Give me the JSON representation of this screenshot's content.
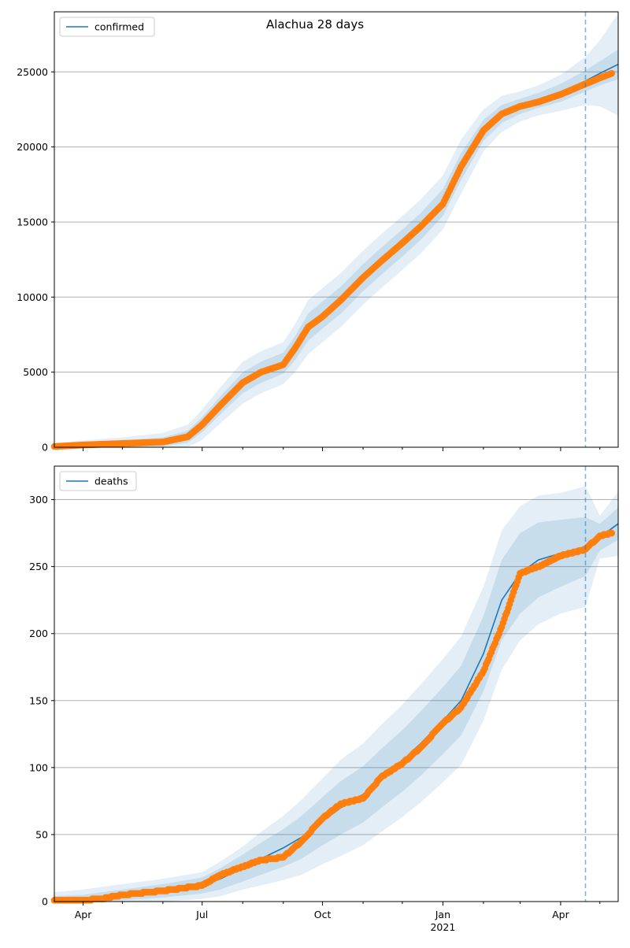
{
  "figure": {
    "title": "Alachua 28 days"
  },
  "colors": {
    "line": "#1f77b4",
    "points": "#ff7f0e",
    "band": "#1f77b4",
    "grid": "#b0b0b0",
    "forecast_line": "#1f77b4"
  },
  "chart_data": [
    {
      "type": "line",
      "name": "confirmed-panel",
      "title": "Alachua 28 days",
      "xlabel": "",
      "ylabel": "",
      "x_range": [
        "2020-03-10",
        "2021-05-15"
      ],
      "ylim": [
        0,
        29000
      ],
      "yticks": [
        0,
        5000,
        10000,
        15000,
        20000,
        25000
      ],
      "ytick_labels": [
        "0",
        "5000",
        "10000",
        "15000",
        "20000",
        "25000"
      ],
      "grid": "y",
      "legend": {
        "position": "top-left",
        "label": "confirmed"
      },
      "forecast_start": "2021-04-20",
      "series": [
        {
          "name": "confirmed",
          "kind": "model",
          "x": [
            "2020-03-10",
            "2020-04-01",
            "2020-05-01",
            "2020-06-01",
            "2020-06-20",
            "2020-07-01",
            "2020-07-15",
            "2020-08-01",
            "2020-08-15",
            "2020-09-01",
            "2020-09-10",
            "2020-09-20",
            "2020-10-01",
            "2020-10-15",
            "2020-11-01",
            "2020-11-15",
            "2020-12-01",
            "2020-12-15",
            "2021-01-01",
            "2021-01-15",
            "2021-02-01",
            "2021-02-15",
            "2021-03-01",
            "2021-03-15",
            "2021-04-01",
            "2021-04-20",
            "2021-05-01",
            "2021-05-15"
          ],
          "y": [
            50,
            150,
            250,
            350,
            700,
            1500,
            2800,
            4300,
            5000,
            5600,
            6600,
            8000,
            8800,
            9800,
            11300,
            12400,
            13600,
            14700,
            16300,
            18700,
            21100,
            22200,
            22700,
            23100,
            23600,
            24400,
            24900,
            25500
          ],
          "band_inner": [
            100,
            150,
            200,
            300,
            400,
            500,
            600,
            700,
            700,
            700,
            800,
            900,
            900,
            900,
            900,
            900,
            900,
            900,
            900,
            900,
            700,
            600,
            500,
            500,
            600,
            700,
            800,
            1000
          ],
          "band_outer": [
            200,
            300,
            400,
            600,
            800,
            1000,
            1200,
            1400,
            1400,
            1400,
            1600,
            1800,
            1800,
            1800,
            1800,
            1800,
            1800,
            1800,
            1800,
            1800,
            1400,
            1200,
            1000,
            1000,
            1200,
            1600,
            2200,
            3400
          ]
        },
        {
          "name": "confirmed observed",
          "kind": "observed",
          "x": [
            "2020-03-10",
            "2020-04-01",
            "2020-05-01",
            "2020-06-01",
            "2020-06-20",
            "2020-07-01",
            "2020-07-15",
            "2020-08-01",
            "2020-08-15",
            "2020-09-01",
            "2020-09-10",
            "2020-09-20",
            "2020-10-01",
            "2020-10-15",
            "2020-11-01",
            "2020-11-15",
            "2020-12-01",
            "2020-12-15",
            "2021-01-01",
            "2021-01-15",
            "2021-02-01",
            "2021-02-15",
            "2021-03-01",
            "2021-03-15",
            "2021-04-01",
            "2021-04-20",
            "2021-05-01",
            "2021-05-10"
          ],
          "y": [
            50,
            150,
            250,
            350,
            700,
            1500,
            2800,
            4300,
            5000,
            5500,
            6600,
            8000,
            8700,
            9800,
            11300,
            12400,
            13600,
            14700,
            16200,
            18700,
            21100,
            22200,
            22700,
            23000,
            23500,
            24200,
            24600,
            24900
          ]
        }
      ]
    },
    {
      "type": "line",
      "name": "deaths-panel",
      "xlabel": "",
      "ylabel": "",
      "x_range": [
        "2020-03-10",
        "2021-05-15"
      ],
      "ylim": [
        0,
        325
      ],
      "yticks": [
        0,
        50,
        100,
        150,
        200,
        250,
        300
      ],
      "ytick_labels": [
        "0",
        "50",
        "100",
        "150",
        "200",
        "250",
        "300"
      ],
      "xticks": [
        "2020-04-01",
        "2020-07-01",
        "2020-10-01",
        "2021-01-01",
        "2021-04-01"
      ],
      "xtick_labels": [
        "Apr",
        "Jul",
        "Oct",
        "Jan",
        "Apr"
      ],
      "xtick_year_label": "2021",
      "grid": "y",
      "legend": {
        "position": "top-left",
        "label": "deaths"
      },
      "forecast_start": "2021-04-20",
      "series": [
        {
          "name": "deaths",
          "kind": "model",
          "x": [
            "2020-03-10",
            "2020-04-01",
            "2020-05-01",
            "2020-06-01",
            "2020-07-01",
            "2020-07-15",
            "2020-08-01",
            "2020-08-15",
            "2020-09-01",
            "2020-09-15",
            "2020-10-01",
            "2020-10-15",
            "2020-11-01",
            "2020-11-15",
            "2020-12-01",
            "2020-12-15",
            "2021-01-01",
            "2021-01-15",
            "2021-02-01",
            "2021-02-15",
            "2021-03-01",
            "2021-03-15",
            "2021-04-01",
            "2021-04-20",
            "2021-05-01",
            "2021-05-15"
          ],
          "y": [
            1,
            2,
            5,
            8,
            12,
            17,
            25,
            32,
            40,
            48,
            60,
            70,
            80,
            92,
            105,
            118,
            135,
            150,
            185,
            225,
            245,
            255,
            260,
            265,
            272,
            282
          ],
          "band_inner": [
            3,
            3,
            4,
            5,
            6,
            8,
            10,
            12,
            14,
            16,
            18,
            20,
            21,
            22,
            23,
            24,
            25,
            26,
            28,
            30,
            30,
            28,
            25,
            22,
            10,
            12
          ],
          "band_outer": [
            6,
            7,
            8,
            9,
            10,
            13,
            16,
            20,
            24,
            28,
            32,
            36,
            38,
            40,
            42,
            44,
            46,
            48,
            50,
            52,
            50,
            48,
            45,
            45,
            16,
            24
          ]
        },
        {
          "name": "deaths observed",
          "kind": "observed",
          "x": [
            "2020-03-10",
            "2020-04-01",
            "2020-04-15",
            "2020-05-01",
            "2020-06-01",
            "2020-07-01",
            "2020-07-15",
            "2020-08-01",
            "2020-08-15",
            "2020-09-01",
            "2020-09-15",
            "2020-10-01",
            "2020-10-15",
            "2020-11-01",
            "2020-11-15",
            "2020-12-01",
            "2020-12-15",
            "2021-01-01",
            "2021-01-15",
            "2021-02-01",
            "2021-02-15",
            "2021-03-01",
            "2021-03-15",
            "2021-04-01",
            "2021-04-20",
            "2021-05-01",
            "2021-05-10"
          ],
          "y": [
            1,
            1,
            2,
            5,
            8,
            12,
            20,
            26,
            31,
            33,
            45,
            62,
            73,
            77,
            93,
            103,
            115,
            133,
            145,
            172,
            205,
            245,
            250,
            258,
            263,
            273,
            275
          ]
        }
      ]
    }
  ]
}
